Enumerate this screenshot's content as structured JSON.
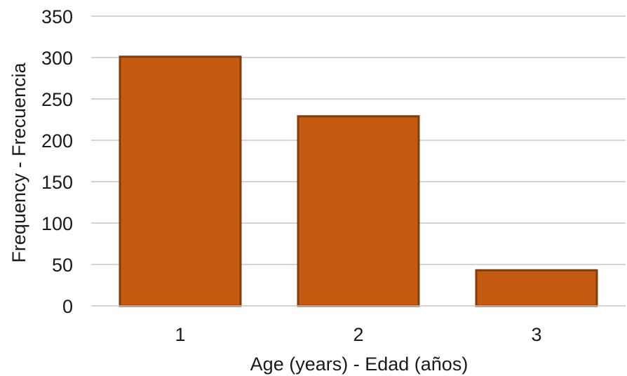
{
  "chart_data": {
    "type": "bar",
    "title": "",
    "xlabel": "Age (years) - Edad (años)",
    "ylabel": "Frequency - Frecuencia",
    "categories": [
      "1",
      "2",
      "3"
    ],
    "values": [
      301,
      229,
      43
    ],
    "ylim": [
      0,
      350
    ],
    "yticks": [
      0,
      50,
      100,
      150,
      200,
      250,
      300,
      350
    ],
    "grid": true,
    "legend": "none",
    "colors": {
      "bar_fill": "#c55a11",
      "bar_stroke": "#843c0c",
      "grid": "#c6c6c6",
      "axis": "#c6c6c6",
      "text": "#1a1a1a"
    }
  }
}
